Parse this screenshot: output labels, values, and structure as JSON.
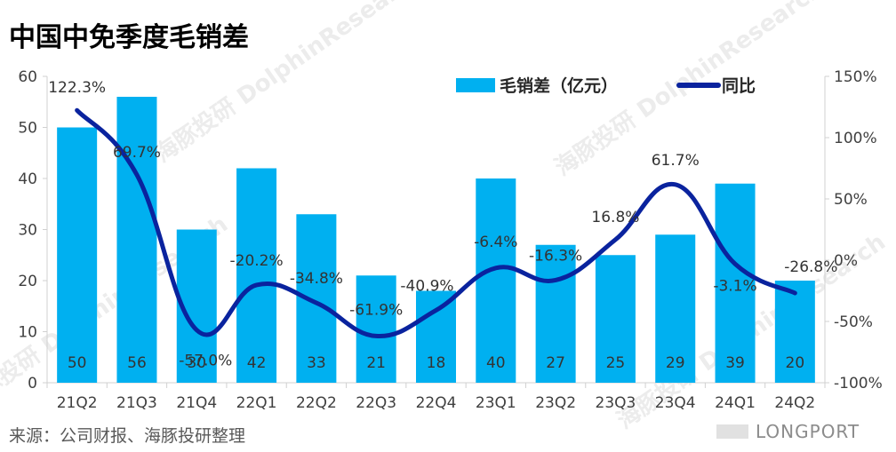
{
  "title": "中国中免季度毛销差",
  "source": "来源：公司财报、海豚投研整理",
  "watermark": "海豚投研 DolphinResearch",
  "logo": "LONGPORT",
  "colors": {
    "bar": "#00b0f0",
    "line": "#0a239e",
    "text": "#404040"
  },
  "chart_data": {
    "type": "bar+line",
    "title": "中国中免季度毛销差",
    "categories": [
      "21Q2",
      "21Q3",
      "21Q4",
      "22Q1",
      "22Q2",
      "22Q3",
      "22Q4",
      "23Q1",
      "23Q2",
      "23Q3",
      "23Q4",
      "24Q1",
      "24Q2"
    ],
    "series": [
      {
        "name": "毛销差（亿元）",
        "type": "bar",
        "axis": "left",
        "values": [
          50,
          56,
          30,
          42,
          33,
          21,
          18,
          40,
          27,
          25,
          29,
          39,
          20
        ],
        "labels": [
          "50",
          "56",
          "30",
          "42",
          "33",
          "21",
          "18",
          "40",
          "27",
          "25",
          "29",
          "39",
          "20"
        ]
      },
      {
        "name": "同比",
        "type": "line",
        "axis": "right",
        "unit": "%",
        "values": [
          122.3,
          69.7,
          -57.0,
          -20.2,
          -34.8,
          -61.9,
          -40.9,
          -6.4,
          -16.3,
          16.8,
          61.7,
          -3.1,
          -26.8
        ],
        "labels": [
          "122.3%",
          "69.7%",
          "-57.0%",
          "-20.2%",
          "-34.8%",
          "-61.9%",
          "-40.9%",
          "-6.4%",
          "-16.3%",
          "16.8%",
          "61.7%",
          "-3.1%",
          "-26.8%"
        ]
      }
    ],
    "y_left": {
      "min": 0,
      "max": 60,
      "step": 10,
      "ticks": [
        "0",
        "10",
        "20",
        "30",
        "40",
        "50",
        "60"
      ]
    },
    "y_right": {
      "min": -100,
      "max": 150,
      "step": 50,
      "ticks": [
        "-100%",
        "-50%",
        "0%",
        "50%",
        "100%",
        "150%"
      ]
    },
    "legend": {
      "position": "top-right",
      "items": [
        "毛销差（亿元）",
        "同比"
      ]
    }
  }
}
